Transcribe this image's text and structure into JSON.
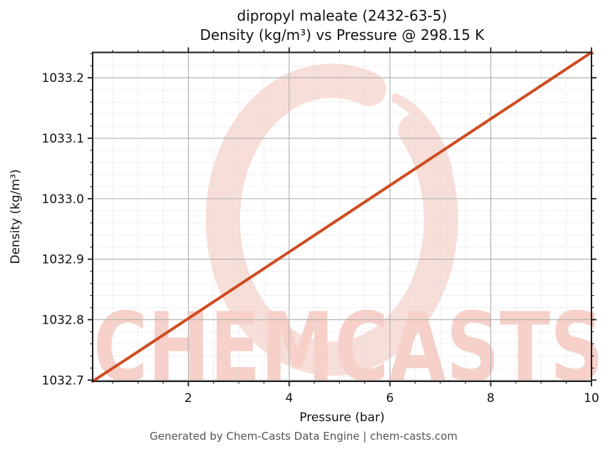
{
  "title": {
    "line1": "dipropyl maleate (2432-63-5)",
    "line2": "Density (kg/m³) vs Pressure @ 298.15 K"
  },
  "axes": {
    "xlabel": "Pressure (bar)",
    "ylabel": "Density (kg/m³)"
  },
  "footer": "Generated by Chem-Casts Data Engine | chem-casts.com",
  "watermark": {
    "text": "CHEMCASTS",
    "logo": "chemcasts-brush-ring",
    "color": "#f6d0c9"
  },
  "colors": {
    "line": "#cf4c20",
    "spine": "#1c1c1c",
    "grid_major": "#b3b3b3",
    "grid_minor": "#d9d9d9",
    "tick": "#1c1c1c",
    "footer_text": "#545454",
    "watermark_ring": "#f8ded8"
  },
  "chart_data": {
    "type": "line",
    "title": "dipropyl maleate (2432-63-5) — Density (kg/m³) vs Pressure @ 298.15 K",
    "xlabel": "Pressure (bar)",
    "ylabel": "Density (kg/m³)",
    "xlim": [
      0.1,
      10
    ],
    "ylim": [
      1032.698,
      1033.242
    ],
    "xticks_major": [
      2,
      4,
      6,
      8,
      10
    ],
    "xtick_minor_step": 0.5,
    "yticks_major": [
      1032.7,
      1032.8,
      1032.9,
      1033.0,
      1033.1,
      1033.2
    ],
    "ytick_minor_step": 0.02,
    "grid": true,
    "legend_position": "none",
    "series": [
      {
        "name": "Density @ 298.15 K",
        "color": "#cf4c20",
        "x": [
          0.1,
          1,
          2,
          3,
          4,
          5,
          6,
          7,
          8,
          9,
          10
        ],
        "y": [
          1032.698,
          1032.747,
          1032.802,
          1032.857,
          1032.912,
          1032.967,
          1033.022,
          1033.077,
          1033.132,
          1033.187,
          1033.242
        ]
      }
    ]
  }
}
